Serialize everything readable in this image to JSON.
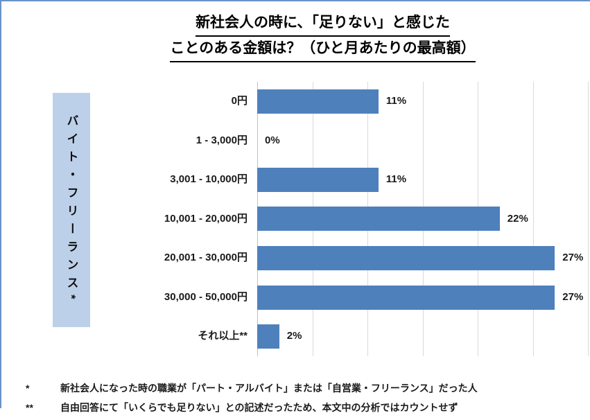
{
  "frame": {
    "border_color": "#6b92c8"
  },
  "title": {
    "line1": "新社会人の時に、「足りない」と感じた",
    "line2": "ことのある金額は？（ひと月あたりの最高額）"
  },
  "side_label": {
    "text": "バイト・フリーランス*"
  },
  "chart_data": {
    "type": "bar",
    "orientation": "horizontal",
    "title": "新社会人の時に、「足りない」と感じたことのある金額は？（ひと月あたりの最高額）",
    "group_label": "バイト・フリーランス*",
    "categories": [
      "0円",
      "1 - 3,000円",
      "3,001 - 10,000円",
      "10,001 - 20,000円",
      "20,001 - 30,000円",
      "30,000 - 50,000円",
      "それ以上**"
    ],
    "values": [
      11,
      0,
      11,
      22,
      27,
      27,
      2
    ],
    "value_labels": [
      "11%",
      "0%",
      "11%",
      "22%",
      "27%",
      "27%",
      "2%"
    ],
    "xlim": [
      0,
      30
    ],
    "gridline_interval": 5,
    "grid": true,
    "legend": "none",
    "bar_color": "#4e80bc",
    "gridline_color": "#d9d9d9",
    "side_box_color": "#bdd0e9"
  },
  "footnotes": [
    {
      "marker": "*",
      "text": "新社会人になった時の職業が「パート・アルバイト」または「自営業・フリーランス」だった人"
    },
    {
      "marker": "**",
      "text": "自由回答にて「いくらでも足りない」との記述だったため、本文中の分析ではカウントせず"
    }
  ]
}
